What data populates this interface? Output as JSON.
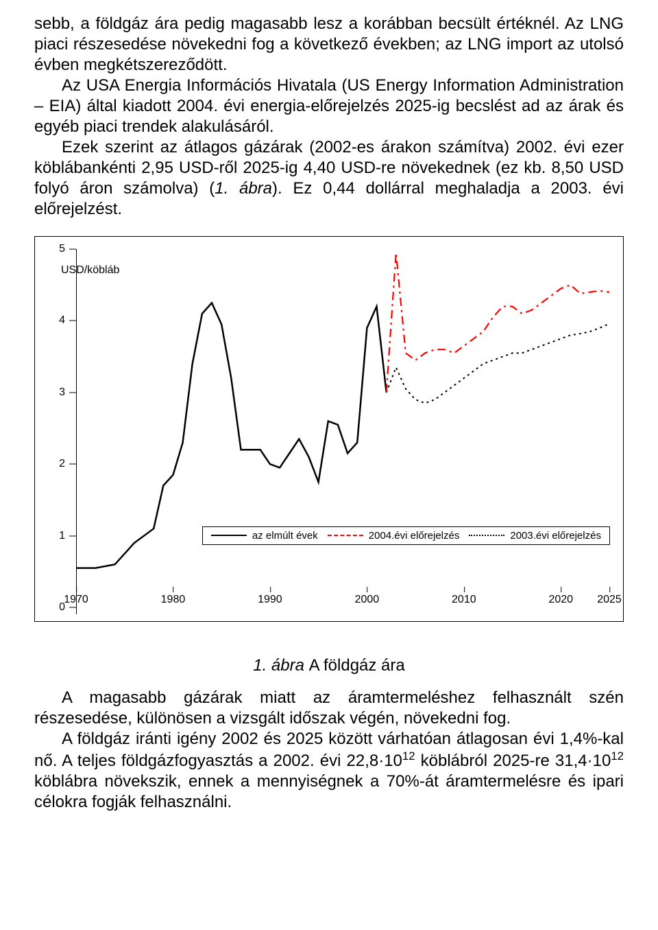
{
  "paragraphs": {
    "p1": "sebb, a földgáz ára pedig magasabb lesz a korábban becsült értéknél. Az LNG piaci részesedése növekedni fog a következő években; az LNG import az utolsó évben megkétszereződött.",
    "p2": "Az USA Energia Információs Hivatala (US Energy Information Administration – EIA) által kiadott 2004. évi energia-előrejelzés 2025-ig becslést ad az árak és egyéb piaci trendek alakulásáról.",
    "p3_a": "Ezek szerint az átlagos gázárak (2002-es árakon számítva) 2002. évi ezer köblábankénti 2,95 USD-ről 2025-ig 4,40 USD-re növekednek (ez kb. 8,50 USD folyó áron számolva) (",
    "p3_b": "1. ábra",
    "p3_c": "). Ez 0,44 dollárral meghaladja a 2003. évi előrejelzést."
  },
  "caption_prefix": "1. ábra ",
  "caption_text": "A földgáz ára",
  "after": {
    "a1": "A magasabb gázárak miatt az áramtermeléshez felhasznált szén részesedése, különösen a vizsgált időszak végén, növekedni fog.",
    "a2_a": "A földgáz iránti igény 2002 és 2025 között várhatóan átlagosan évi 1,4%-kal nő. A teljes földgázfogyasztás a 2002. évi 22,8·10",
    "a2_sup1": "12",
    "a2_b": " köblábról 2025-re 31,4·10",
    "a2_sup2": "12",
    "a2_c": " köblábra növekszik, ennek a mennyiségnek a 70%-át áramtermelésre és ipari célokra fogják felhasználni."
  },
  "chart": {
    "type": "line",
    "background_color": "#ffffff",
    "border_color": "#000000",
    "x_domain": [
      1970,
      2025
    ],
    "y_domain": [
      0,
      5
    ],
    "y_ticks": [
      0,
      1,
      2,
      3,
      4,
      5
    ],
    "x_ticks": [
      1970,
      1980,
      1990,
      2000,
      2010,
      2020,
      2025
    ],
    "y_unit_label": "USD/köbláb",
    "legend_items": [
      {
        "label": "az elmúlt évek",
        "color": "#000000",
        "dash": "solid"
      },
      {
        "label": "2004.évi előrejelzés",
        "color": "#ff0000",
        "dash": "dash-dot"
      },
      {
        "label": "2003.évi előrejelzés",
        "color": "#000000",
        "dash": "dot"
      }
    ],
    "series": {
      "historical": {
        "color": "#000000",
        "width": 2.5,
        "dash": "solid",
        "points": [
          [
            1970,
            0.55
          ],
          [
            1972,
            0.55
          ],
          [
            1974,
            0.6
          ],
          [
            1976,
            0.9
          ],
          [
            1978,
            1.1
          ],
          [
            1979,
            1.7
          ],
          [
            1980,
            1.85
          ],
          [
            1981,
            2.3
          ],
          [
            1982,
            3.4
          ],
          [
            1983,
            4.1
          ],
          [
            1984,
            4.25
          ],
          [
            1985,
            3.95
          ],
          [
            1986,
            3.2
          ],
          [
            1987,
            2.2
          ],
          [
            1988,
            2.2
          ],
          [
            1989,
            2.2
          ],
          [
            1990,
            2.0
          ],
          [
            1991,
            1.95
          ],
          [
            1992,
            2.15
          ],
          [
            1993,
            2.35
          ],
          [
            1994,
            2.1
          ],
          [
            1995,
            1.75
          ],
          [
            1996,
            2.6
          ],
          [
            1997,
            2.55
          ],
          [
            1998,
            2.15
          ],
          [
            1999,
            2.3
          ],
          [
            2000,
            3.9
          ],
          [
            2001,
            4.2
          ],
          [
            2002,
            3.0
          ]
        ]
      },
      "forecast2004": {
        "color": "#ff0000",
        "width": 2.2,
        "dash": "dash-dot",
        "points": [
          [
            2002,
            3.0
          ],
          [
            2003,
            4.95
          ],
          [
            2004,
            3.55
          ],
          [
            2005,
            3.45
          ],
          [
            2006,
            3.55
          ],
          [
            2007,
            3.6
          ],
          [
            2008,
            3.6
          ],
          [
            2009,
            3.55
          ],
          [
            2010,
            3.65
          ],
          [
            2011,
            3.75
          ],
          [
            2012,
            3.85
          ],
          [
            2013,
            4.05
          ],
          [
            2014,
            4.2
          ],
          [
            2015,
            4.2
          ],
          [
            2016,
            4.1
          ],
          [
            2017,
            4.15
          ],
          [
            2018,
            4.25
          ],
          [
            2019,
            4.35
          ],
          [
            2020,
            4.45
          ],
          [
            2021,
            4.5
          ],
          [
            2022,
            4.38
          ],
          [
            2023,
            4.4
          ],
          [
            2024,
            4.42
          ],
          [
            2025,
            4.4
          ]
        ]
      },
      "forecast2003": {
        "color": "#000000",
        "width": 2.0,
        "dash": "dot",
        "points": [
          [
            2002,
            3.0
          ],
          [
            2003,
            3.35
          ],
          [
            2004,
            3.05
          ],
          [
            2005,
            2.9
          ],
          [
            2006,
            2.85
          ],
          [
            2007,
            2.9
          ],
          [
            2008,
            3.0
          ],
          [
            2009,
            3.1
          ],
          [
            2010,
            3.2
          ],
          [
            2011,
            3.3
          ],
          [
            2012,
            3.4
          ],
          [
            2013,
            3.45
          ],
          [
            2014,
            3.5
          ],
          [
            2015,
            3.55
          ],
          [
            2016,
            3.55
          ],
          [
            2017,
            3.6
          ],
          [
            2018,
            3.65
          ],
          [
            2019,
            3.7
          ],
          [
            2020,
            3.75
          ],
          [
            2021,
            3.8
          ],
          [
            2022,
            3.82
          ],
          [
            2023,
            3.85
          ],
          [
            2024,
            3.9
          ],
          [
            2025,
            3.96
          ]
        ]
      }
    }
  }
}
